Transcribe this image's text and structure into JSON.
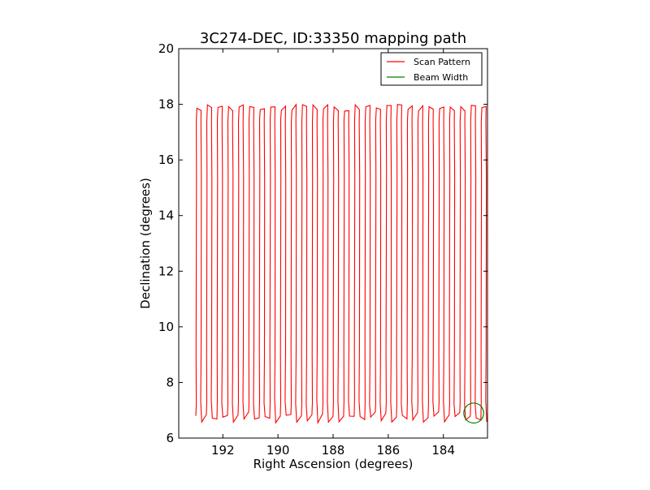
{
  "chart_data": {
    "type": "line",
    "title": "3C274-DEC, ID:33350 mapping path",
    "xlabel": "Right Ascension (degrees)",
    "ylabel": "Declination (degrees)",
    "xlim": [
      193.6,
      182.4
    ],
    "ylim": [
      6,
      20
    ],
    "x_inverted": true,
    "xticks": [
      192,
      190,
      188,
      186,
      184
    ],
    "yticks": [
      6,
      8,
      10,
      12,
      14,
      16,
      18,
      20
    ],
    "grid": false,
    "legend_position": "top-right",
    "legend": [
      {
        "label": "Scan Pattern",
        "color": "#ff0000"
      },
      {
        "label": "Beam Width",
        "color": "#008000"
      }
    ],
    "series": [
      {
        "name": "Scan Pattern",
        "color": "#ff0000",
        "scan_start_ra": 192.98,
        "scan_end_ra": 182.45,
        "scan_count": 56,
        "dec_bottom": 6.7,
        "dec_top": 18.0,
        "dec_kinks": [
          7.3,
          9.1,
          15.4,
          17.4
        ]
      },
      {
        "name": "Beam Width",
        "color": "#008000",
        "center_ra": 182.9,
        "center_dec": 6.9,
        "radius_deg": 0.36
      }
    ]
  }
}
